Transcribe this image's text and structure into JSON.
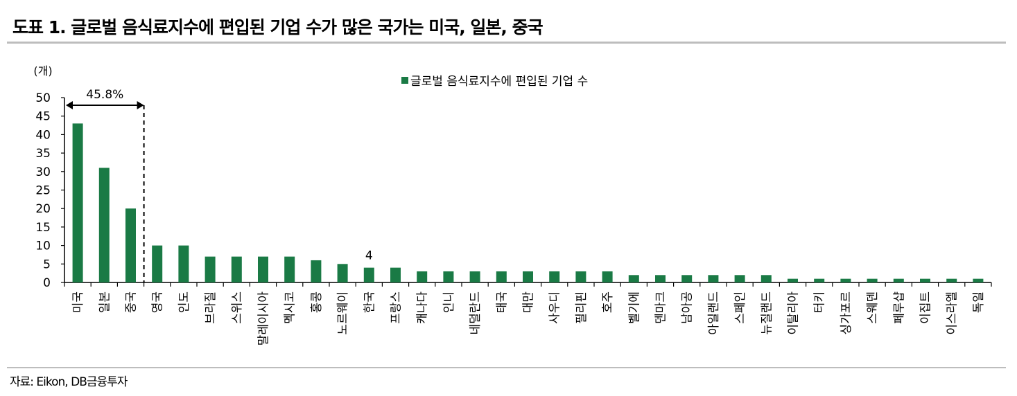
{
  "header": {
    "title": "도표 1. 글로벌 음식료지수에 편입된 기업 수가 많은 국가는 미국, 일본, 중국"
  },
  "footer": {
    "source": "자료: Eikon, DB금융투자"
  },
  "colors": {
    "bar": "#1a7a45",
    "axis": "#000000",
    "rule": "#bdbdbd"
  },
  "chart_data": {
    "type": "bar",
    "unit_label": "(개)",
    "ylim": [
      0,
      50
    ],
    "yticks": [
      0,
      5,
      10,
      15,
      20,
      25,
      30,
      35,
      40,
      45,
      50
    ],
    "grid": false,
    "legend_position": "top-center",
    "categories": [
      "미국",
      "일본",
      "중국",
      "영국",
      "인도",
      "브라질",
      "스위스",
      "말레이시아",
      "멕시코",
      "홍콩",
      "노르웨이",
      "한국",
      "프랑스",
      "캐나다",
      "인니",
      "네덜란드",
      "태국",
      "대만",
      "사우디",
      "필리핀",
      "호주",
      "벨기에",
      "덴마크",
      "남아공",
      "아일랜드",
      "스페인",
      "뉴질랜드",
      "이탈리아",
      "터키",
      "싱가포르",
      "스웨덴",
      "페루샵",
      "이집트",
      "이스라엘",
      "독일"
    ],
    "series": [
      {
        "name": "글로벌 음식료지수에 편입된 기업 수",
        "values": [
          43,
          31,
          20,
          10,
          10,
          7,
          7,
          7,
          7,
          6,
          5,
          4,
          4,
          3,
          3,
          3,
          3,
          3,
          3,
          3,
          3,
          2,
          2,
          2,
          2,
          2,
          2,
          1,
          1,
          1,
          1,
          1,
          1,
          1,
          1
        ]
      }
    ],
    "annotations": [
      {
        "text": "45.8%",
        "span_categories": [
          "미국",
          "중국"
        ]
      },
      {
        "text": "4",
        "category": "한국"
      }
    ]
  }
}
